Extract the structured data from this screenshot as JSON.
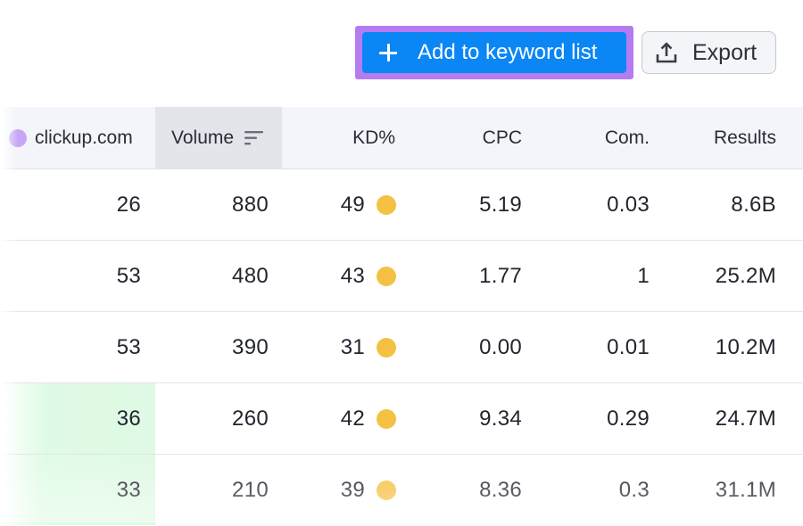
{
  "toolbar": {
    "add_label": "Add to keyword list",
    "export_label": "Export",
    "accent_button": "#0a86f5",
    "highlight_border": "#b57cf2"
  },
  "table": {
    "headers": {
      "domain": "clickup.com",
      "volume": "Volume",
      "kd": "KD%",
      "cpc": "CPC",
      "com": "Com.",
      "results": "Results"
    },
    "rows": [
      {
        "position": "26",
        "volume": "880",
        "kd": "49",
        "cpc": "5.19",
        "com": "0.03",
        "results": "8.6B"
      },
      {
        "position": "53",
        "volume": "480",
        "kd": "43",
        "cpc": "1.77",
        "com": "1",
        "results": "25.2M"
      },
      {
        "position": "53",
        "volume": "390",
        "kd": "31",
        "cpc": "0.00",
        "com": "0.01",
        "results": "10.2M"
      },
      {
        "position": "36",
        "volume": "260",
        "kd": "42",
        "cpc": "9.34",
        "com": "0.29",
        "results": "24.7M"
      },
      {
        "position": "33",
        "volume": "210",
        "kd": "39",
        "cpc": "8.36",
        "com": "0.3",
        "results": "31.1M"
      }
    ],
    "kd_dot_color": "#f5c142",
    "highlight_row_color": "#dff9e4"
  }
}
